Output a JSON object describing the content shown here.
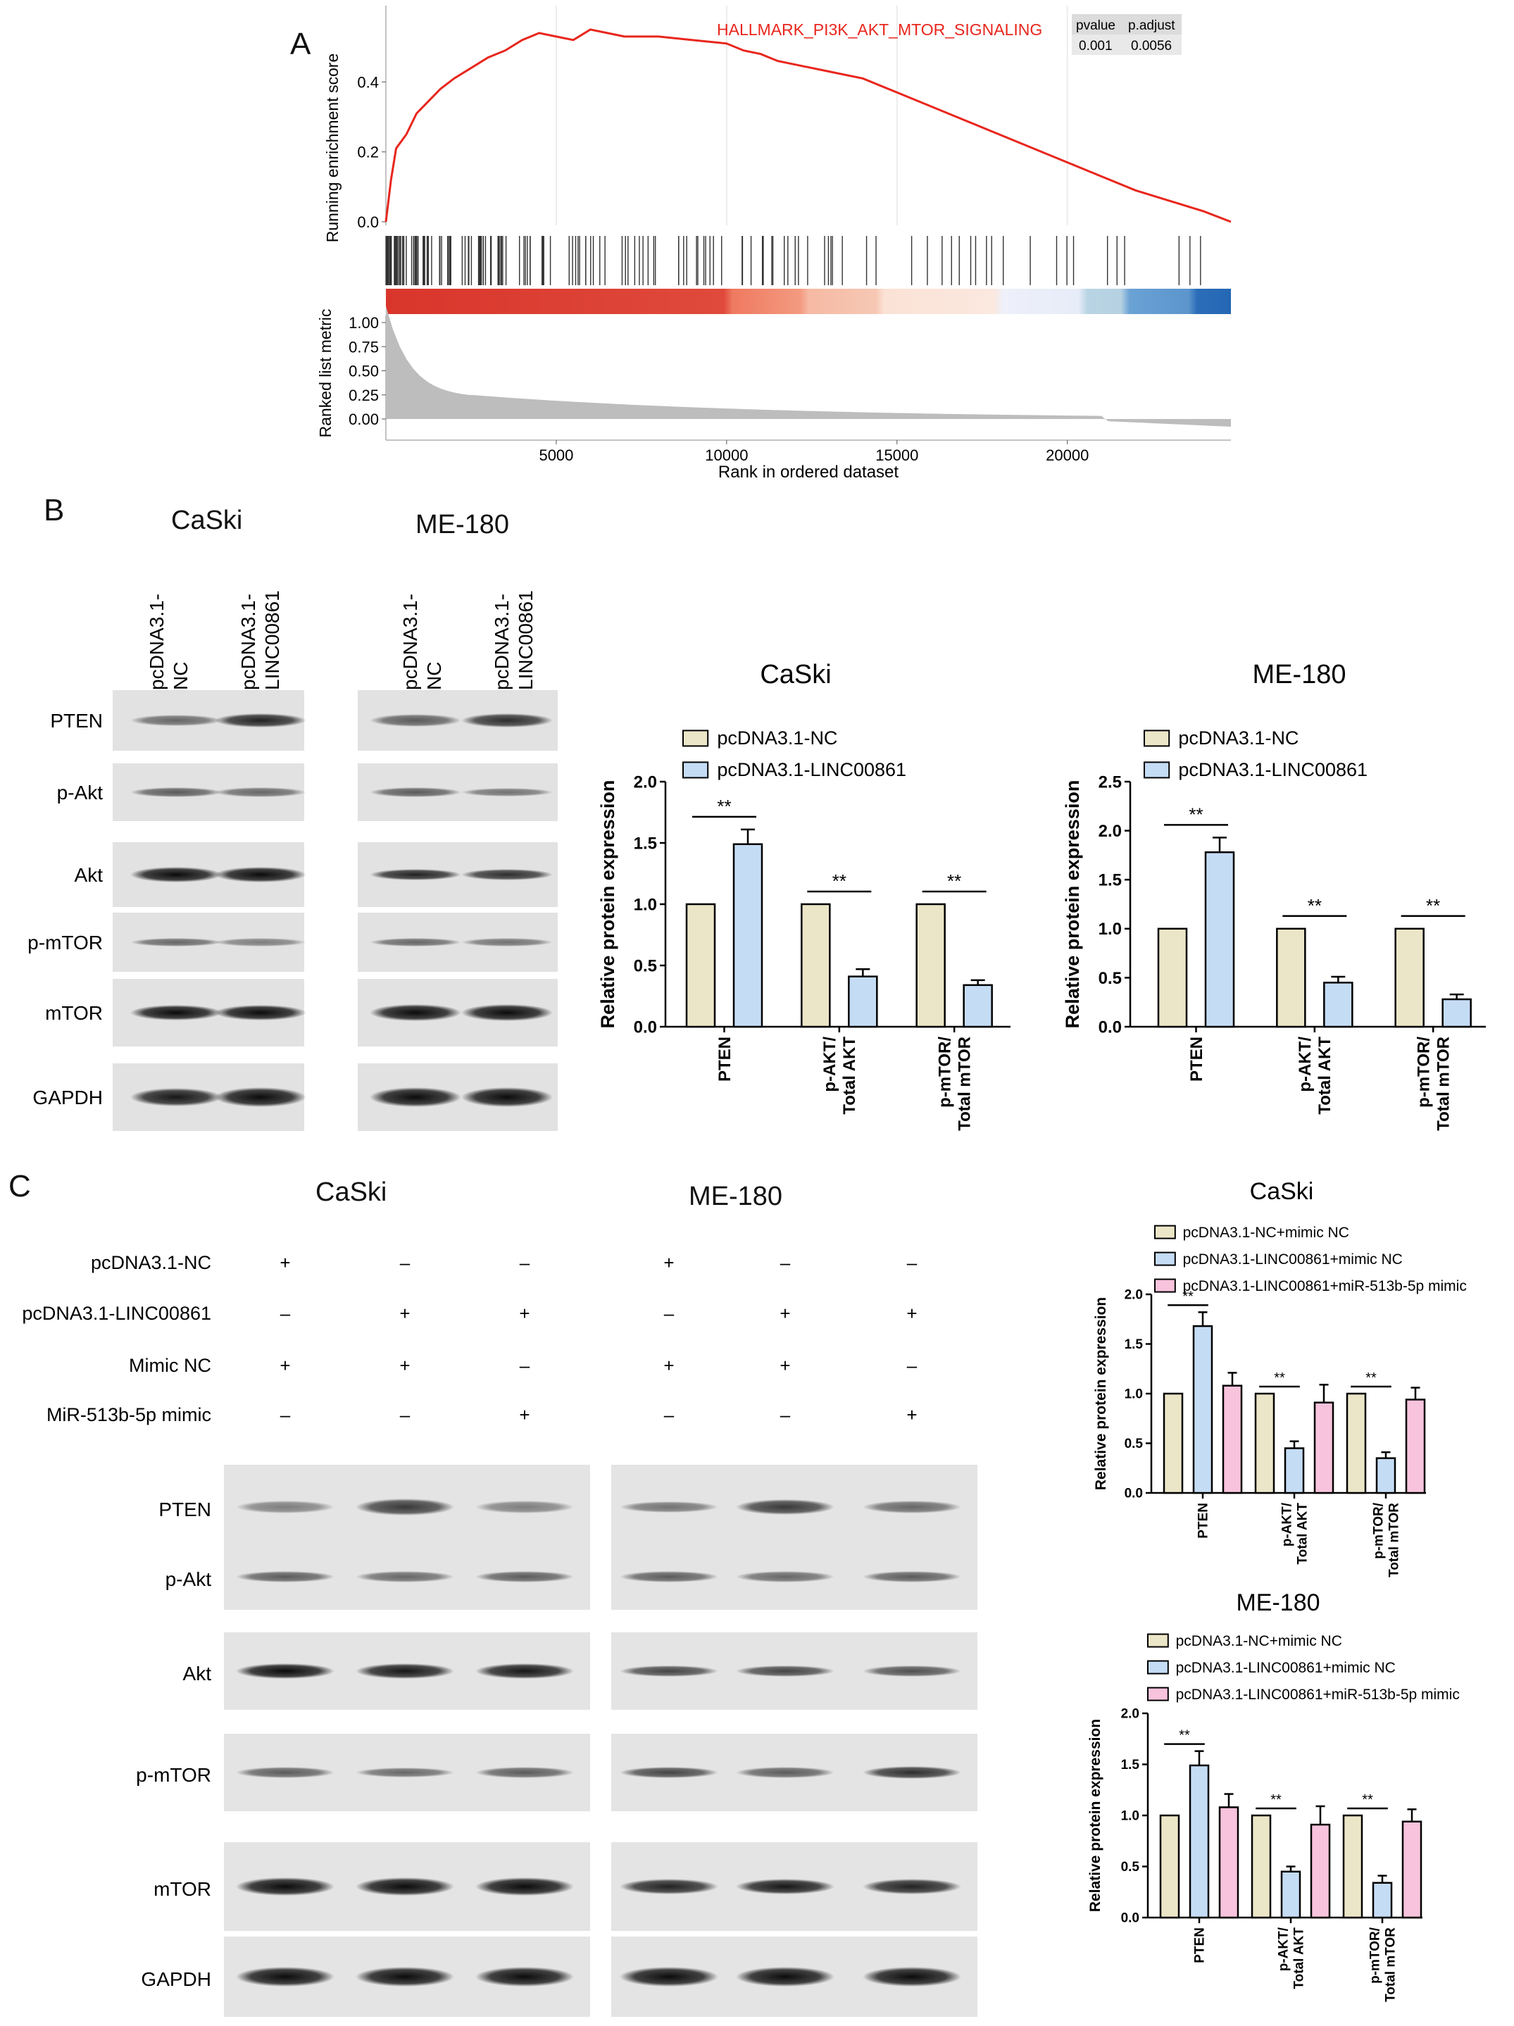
{
  "panel_a": {
    "letter": "A",
    "gene_set": "HALLMARK_PI3K_AKT_MTOR_SIGNALING",
    "table": {
      "headers": [
        "pvalue",
        "p.adjust"
      ],
      "values": [
        "0.001",
        "0.0056"
      ]
    },
    "y_label_top": "Running enrichment score",
    "y_ticks_top": [
      "0.0",
      "0.2",
      "0.4"
    ],
    "y_label_bottom": "Ranked list metric",
    "y_ticks_bottom": [
      "0.00",
      "0.25",
      "0.50",
      "0.75",
      "1.00"
    ],
    "x_label": "Rank in ordered dataset",
    "x_ticks": [
      "5000",
      "10000",
      "15000",
      "20000"
    ]
  },
  "panel_b": {
    "letter": "B",
    "cell_lines": [
      "CaSki",
      "ME-180"
    ],
    "lane_labels": [
      [
        "pcDNA3.1-",
        "NC"
      ],
      [
        "pcDNA3.1-",
        "LINC00861"
      ]
    ],
    "proteins": [
      "PTEN",
      "p-Akt",
      "Akt",
      "p-mTOR",
      "mTOR",
      "GAPDH"
    ]
  },
  "panel_c": {
    "letter": "C",
    "cell_lines": [
      "CaSki",
      "ME-180"
    ],
    "conditions": [
      {
        "label": "pcDNA3.1-NC",
        "signs": [
          "+",
          "–",
          "–"
        ]
      },
      {
        "label": "pcDNA3.1-LINC00861",
        "signs": [
          "–",
          "+",
          "+"
        ]
      },
      {
        "label": "Mimic NC",
        "signs": [
          "+",
          "+",
          "–"
        ]
      },
      {
        "label": "MiR-513b-5p mimic",
        "signs": [
          "–",
          "–",
          "+"
        ]
      }
    ],
    "proteins": [
      "PTEN",
      "p-Akt",
      "Akt",
      "p-mTOR",
      "mTOR",
      "GAPDH"
    ]
  },
  "colors": {
    "nc": "#ece6c8",
    "linc": "#c5dcf5",
    "mimic": "#f8c3dc",
    "es_line": "#e8261d"
  },
  "chart_data": [
    {
      "type": "line",
      "title": "HALLMARK_PI3K_AKT_MTOR_SIGNALING",
      "xlabel": "Rank in ordered dataset",
      "ylabel": "Running enrichment score",
      "xlim": [
        0,
        24800
      ],
      "ylim": [
        0,
        0.57
      ],
      "series": [
        {
          "name": "HALLMARK_PI3K_AKT_MTOR_SIGNALING",
          "x": [
            0,
            150,
            300,
            600,
            900,
            1200,
            1600,
            2000,
            2500,
            3000,
            3500,
            4000,
            4500,
            5000,
            5500,
            6000,
            6500,
            7000,
            8000,
            9000,
            10000,
            10500,
            11000,
            11500,
            12000,
            13000,
            14000,
            15000,
            16000,
            17000,
            18000,
            19000,
            20000,
            21000,
            22000,
            23000,
            24000,
            24800
          ],
          "values": [
            0.0,
            0.12,
            0.21,
            0.25,
            0.31,
            0.34,
            0.38,
            0.41,
            0.44,
            0.47,
            0.49,
            0.52,
            0.54,
            0.53,
            0.52,
            0.55,
            0.54,
            0.53,
            0.53,
            0.52,
            0.51,
            0.49,
            0.48,
            0.46,
            0.45,
            0.43,
            0.41,
            0.37,
            0.33,
            0.29,
            0.25,
            0.21,
            0.17,
            0.13,
            0.09,
            0.06,
            0.03,
            0.0
          ]
        }
      ]
    },
    {
      "type": "bar",
      "title": "CaSki",
      "ylabel": "Relative protein expression",
      "ylim": [
        0,
        2.0
      ],
      "y_ticks": [
        "0.0",
        "0.5",
        "1.0",
        "1.5",
        "2.0"
      ],
      "categories": [
        [
          "PTEN"
        ],
        [
          "p-AKT/",
          "Total AKT"
        ],
        [
          "p-mTOR/",
          "Total mTOR"
        ]
      ],
      "series": [
        {
          "name": "pcDNA3.1-NC",
          "values": [
            1.0,
            1.0,
            1.0
          ],
          "errors": [
            0,
            0,
            0
          ]
        },
        {
          "name": "pcDNA3.1-LINC00861",
          "values": [
            1.49,
            0.41,
            0.34
          ],
          "errors": [
            0.12,
            0.06,
            0.04
          ]
        }
      ],
      "significance": [
        "**",
        "**",
        "**"
      ]
    },
    {
      "type": "bar",
      "title": "ME-180",
      "ylabel": "Relative protein expression",
      "ylim": [
        0,
        2.5
      ],
      "y_ticks": [
        "0.0",
        "0.5",
        "1.0",
        "1.5",
        "2.0",
        "2.5"
      ],
      "categories": [
        [
          "PTEN"
        ],
        [
          "p-AKT/",
          "Total AKT"
        ],
        [
          "p-mTOR/",
          "Total mTOR"
        ]
      ],
      "series": [
        {
          "name": "pcDNA3.1-NC",
          "values": [
            1.0,
            1.0,
            1.0
          ],
          "errors": [
            0,
            0,
            0
          ]
        },
        {
          "name": "pcDNA3.1-LINC00861",
          "values": [
            1.78,
            0.45,
            0.28
          ],
          "errors": [
            0.15,
            0.06,
            0.05
          ]
        }
      ],
      "significance": [
        "**",
        "**",
        "**"
      ]
    },
    {
      "type": "bar",
      "title": "CaSki",
      "ylabel": "Relative protein expression",
      "ylim": [
        0,
        2.0
      ],
      "y_ticks": [
        "0.0",
        "0.5",
        "1.0",
        "1.5",
        "2.0"
      ],
      "categories": [
        [
          "PTEN"
        ],
        [
          "p-AKT/",
          "Total AKT"
        ],
        [
          "p-mTOR/",
          "Total mTOR"
        ]
      ],
      "series": [
        {
          "name": "pcDNA3.1-NC+mimic NC",
          "values": [
            1.0,
            1.0,
            1.0
          ],
          "errors": [
            0,
            0,
            0
          ]
        },
        {
          "name": "pcDNA3.1-LINC00861+mimic NC",
          "values": [
            1.68,
            0.45,
            0.35
          ],
          "errors": [
            0.14,
            0.07,
            0.06
          ]
        },
        {
          "name": "pcDNA3.1-LINC00861+miR-513b-5p mimic",
          "values": [
            1.08,
            0.91,
            0.94
          ],
          "errors": [
            0.13,
            0.18,
            0.12
          ]
        }
      ],
      "significance": [
        "**",
        "**",
        "**"
      ]
    },
    {
      "type": "bar",
      "title": "ME-180",
      "ylabel": "Relative protein expression",
      "ylim": [
        0,
        2.0
      ],
      "y_ticks": [
        "0.0",
        "0.5",
        "1.0",
        "1.5",
        "2.0"
      ],
      "categories": [
        [
          "PTEN"
        ],
        [
          "p-AKT/",
          "Total AKT"
        ],
        [
          "p-mTOR/",
          "Total mTOR"
        ]
      ],
      "series": [
        {
          "name": "pcDNA3.1-NC+mimic NC",
          "values": [
            1.0,
            1.0,
            1.0
          ],
          "errors": [
            0,
            0,
            0
          ]
        },
        {
          "name": "pcDNA3.1-LINC00861+mimic NC",
          "values": [
            1.49,
            0.45,
            0.34
          ],
          "errors": [
            0.14,
            0.05,
            0.07
          ]
        },
        {
          "name": "pcDNA3.1-LINC00861+miR-513b-5p mimic",
          "values": [
            1.08,
            0.91,
            0.94
          ],
          "errors": [
            0.13,
            0.18,
            0.12
          ]
        }
      ],
      "significance": [
        "**",
        "**",
        "**"
      ]
    }
  ]
}
